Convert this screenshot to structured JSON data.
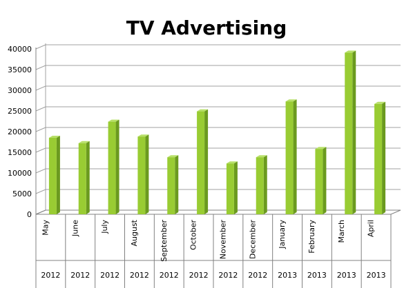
{
  "chart_data": {
    "type": "bar",
    "title": "TV Advertising",
    "xlabel": "",
    "ylabel": "",
    "ylim": [
      0,
      40000
    ],
    "yticks": [
      0,
      5000,
      10000,
      15000,
      20000,
      25000,
      30000,
      35000,
      40000
    ],
    "grid": true,
    "legend": "none",
    "categories": [
      {
        "month": "May",
        "year": "2012"
      },
      {
        "month": "June",
        "year": "2012"
      },
      {
        "month": "July",
        "year": "2012"
      },
      {
        "month": "August",
        "year": "2012"
      },
      {
        "month": "September",
        "year": "2012"
      },
      {
        "month": "October",
        "year": "2012"
      },
      {
        "month": "November",
        "year": "2012"
      },
      {
        "month": "December",
        "year": "2012"
      },
      {
        "month": "January",
        "year": "2013"
      },
      {
        "month": "February",
        "year": "2013"
      },
      {
        "month": "March",
        "year": "2013"
      },
      {
        "month": "April",
        "year": "2013"
      }
    ],
    "values": [
      18500,
      17200,
      22400,
      18800,
      13800,
      24900,
      12300,
      13800,
      27300,
      15800,
      39100,
      26700
    ],
    "colors": {
      "bar_front": "#99cc33",
      "bar_side": "#6b9a1f",
      "bar_top": "#b8e06a",
      "grid": "#a0a0a0"
    }
  }
}
